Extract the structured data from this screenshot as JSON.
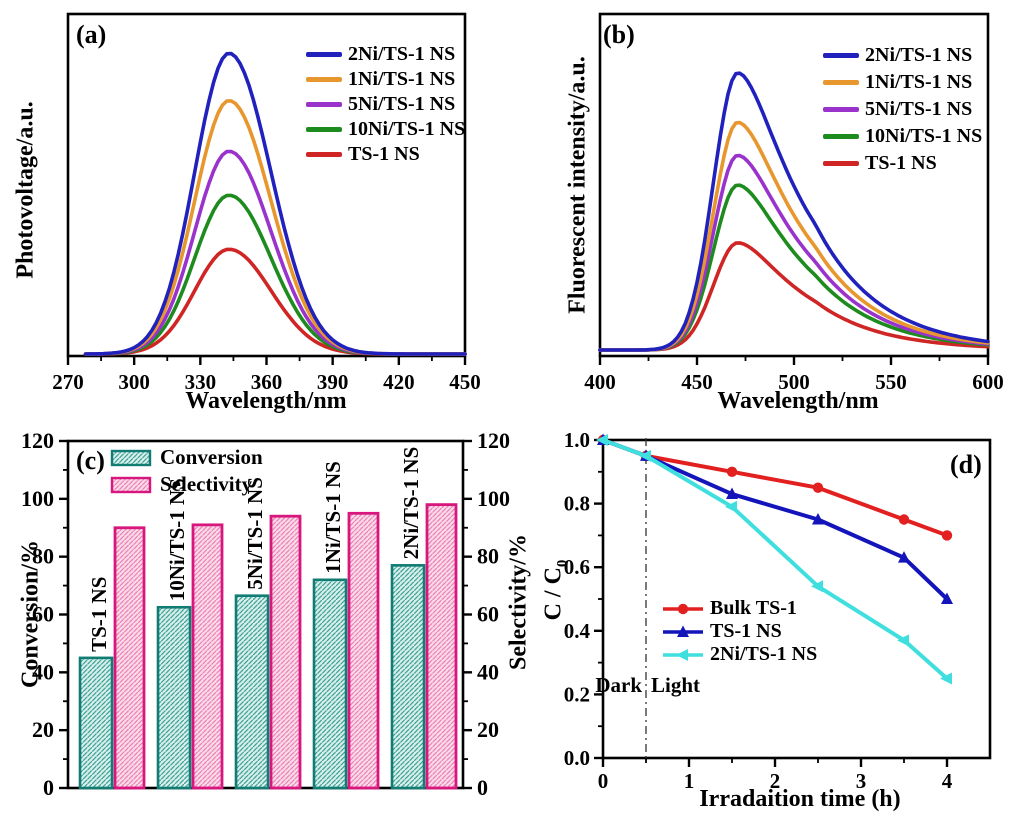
{
  "figure": {
    "background": "#ffffff"
  },
  "chart_data": [
    {
      "id": "a",
      "type": "line",
      "title": "(a)",
      "xlabel": "Wavelength/nm",
      "ylabel": "Photovoltage/a.u.",
      "xlim": [
        270,
        450
      ],
      "x_ticks": [
        270,
        300,
        330,
        360,
        390,
        420,
        450
      ],
      "x_minor_step": 15,
      "ylim": [
        0,
        1
      ],
      "y_axis_labeled": false,
      "grid": false,
      "legend_position": "upper right",
      "peak_nm": 343,
      "sigma_left_nm": 15.5,
      "sigma_right_nm": 19,
      "series": [
        {
          "name": "2Ni/TS-1 NS",
          "color": "#2121bd",
          "peak_height": 0.89
        },
        {
          "name": "1Ni/TS-1 NS",
          "color": "#e8962e",
          "peak_height": 0.75
        },
        {
          "name": "5Ni/TS-1 NS",
          "color": "#9933cc",
          "peak_height": 0.6
        },
        {
          "name": "10Ni/TS-1 NS",
          "color": "#1e8b1e",
          "peak_height": 0.47
        },
        {
          "name": "TS-1 NS",
          "color": "#cf2525",
          "peak_height": 0.31
        }
      ]
    },
    {
      "id": "b",
      "type": "line",
      "title": "(b)",
      "xlabel": "Wavelength/nm",
      "ylabel": "Fluorescent intensity/a.u.",
      "xlim": [
        400,
        600
      ],
      "x_ticks": [
        400,
        450,
        500,
        550,
        600
      ],
      "x_minor_step": 25,
      "ylim": [
        0,
        1
      ],
      "y_axis_labeled": false,
      "grid": false,
      "legend_position": "upper right",
      "peak_nm": 471,
      "sigma_left_nm": 12.5,
      "tail_note": "asymmetric, long tail to 600 nm",
      "series": [
        {
          "name": "2Ni/TS-1 NS",
          "color": "#2121bd",
          "peak_height": 0.84
        },
        {
          "name": "1Ni/TS-1 NS",
          "color": "#e8962e",
          "peak_height": 0.69
        },
        {
          "name": "5Ni/TS-1 NS",
          "color": "#9933cc",
          "peak_height": 0.59
        },
        {
          "name": "10Ni/TS-1 NS",
          "color": "#1e8b1e",
          "peak_height": 0.5
        },
        {
          "name": "TS-1 NS",
          "color": "#cf2525",
          "peak_height": 0.325
        }
      ]
    },
    {
      "id": "c",
      "type": "bar",
      "title": "(c)",
      "ylabel": "Conversion/%",
      "ylabel_right": "Selectivity/%",
      "ylim": [
        0,
        120
      ],
      "y_ticks": [
        0,
        20,
        40,
        60,
        80,
        100,
        120
      ],
      "y_minor_step": 10,
      "grid": false,
      "legend_position": "upper left",
      "categories": [
        "TS-1 NS",
        "10Ni/TS-1 NS",
        "5Ni/TS-1 NS",
        "1Ni/TS-1 NS",
        "2Ni/TS-1 NS"
      ],
      "series": [
        {
          "name": "Conversion",
          "values": [
            45,
            62.5,
            66.5,
            72,
            77
          ],
          "border_color": "#117c74",
          "hatch_color": "#2f9e90",
          "fill_color": "#dcefec"
        },
        {
          "name": "Selectivity",
          "values": [
            90,
            91,
            94,
            95,
            98
          ],
          "border_color": "#d8177e",
          "hatch_color": "#ec7ab0",
          "fill_color": "#f9dcea"
        }
      ]
    },
    {
      "id": "d",
      "type": "line-scatter",
      "title": "(d)",
      "xlabel": "Irradaition time  (h)",
      "ylabel_main": "C / C",
      "ylabel_sub": "0",
      "xlim": [
        0,
        4.5
      ],
      "x_ticks": [
        0,
        1,
        2,
        3,
        4
      ],
      "x_minor_step": 0.5,
      "ylim": [
        0,
        1
      ],
      "y_ticks": [
        "0.0",
        "0.2",
        "0.4",
        "0.6",
        "0.8",
        "1.0"
      ],
      "y_minor_step": 0.1,
      "grid": false,
      "legend_position": "center left",
      "x": [
        0,
        0.5,
        1.5,
        2.5,
        3.5,
        4
      ],
      "series": [
        {
          "name": "Bulk TS-1",
          "color": "#e32020",
          "marker": "circle",
          "values": [
            1.0,
            0.95,
            0.9,
            0.85,
            0.75,
            0.7
          ]
        },
        {
          "name": "TS-1 NS",
          "color": "#1414bb",
          "marker": "triangle-up",
          "values": [
            1.0,
            0.95,
            0.83,
            0.75,
            0.63,
            0.5
          ]
        },
        {
          "name": "2Ni/TS-1 NS",
          "color": "#3fdfdf",
          "marker": "triangle-left",
          "values": [
            1.0,
            0.95,
            0.79,
            0.54,
            0.37,
            0.25
          ]
        }
      ],
      "annotations": {
        "dark": "Dark",
        "light": "Light",
        "divider_x": 0.5
      }
    }
  ]
}
